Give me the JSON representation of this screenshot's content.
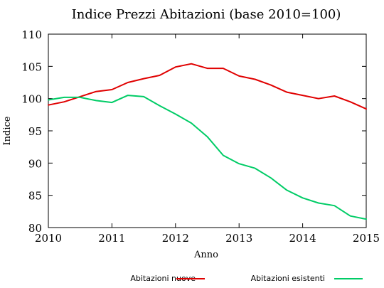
{
  "chart_data": {
    "type": "line",
    "title": "Indice Prezzi Abitazioni (base 2010=100)",
    "xlabel": "Anno",
    "ylabel": "Indice",
    "xlim": [
      2010,
      2015
    ],
    "ylim": [
      80,
      110
    ],
    "xticks": [
      2010,
      2011,
      2012,
      2013,
      2014,
      2015
    ],
    "yticks": [
      80,
      85,
      90,
      95,
      100,
      105,
      110
    ],
    "grid": false,
    "legend_position": "bottom",
    "series": [
      {
        "name": "Abitazioni nuove",
        "color": "#e00000",
        "x": [
          2010.0,
          2010.25,
          2010.5,
          2010.75,
          2011.0,
          2011.25,
          2011.5,
          2011.75,
          2012.0,
          2012.25,
          2012.5,
          2012.75,
          2013.0,
          2013.25,
          2013.5,
          2013.75,
          2014.0,
          2014.25,
          2014.5,
          2014.75,
          2015.0
        ],
        "y": [
          99.0,
          99.5,
          100.3,
          101.1,
          101.4,
          102.5,
          103.1,
          103.6,
          104.9,
          105.4,
          104.7,
          104.7,
          103.5,
          103.0,
          102.1,
          101.0,
          100.5,
          100.0,
          100.4,
          99.5,
          98.4
        ]
      },
      {
        "name": "Abitazioni esistenti",
        "color": "#00cc66",
        "x": [
          2010.0,
          2010.25,
          2010.5,
          2010.75,
          2011.0,
          2011.25,
          2011.5,
          2011.75,
          2012.0,
          2012.25,
          2012.5,
          2012.75,
          2013.0,
          2013.25,
          2013.5,
          2013.75,
          2014.0,
          2014.25,
          2014.5,
          2014.75,
          2015.0
        ],
        "y": [
          99.8,
          100.2,
          100.2,
          99.7,
          99.4,
          100.5,
          100.3,
          98.9,
          97.6,
          96.2,
          94.1,
          91.2,
          89.9,
          89.2,
          87.7,
          85.8,
          84.6,
          83.8,
          83.4,
          81.8,
          81.3
        ]
      }
    ]
  }
}
